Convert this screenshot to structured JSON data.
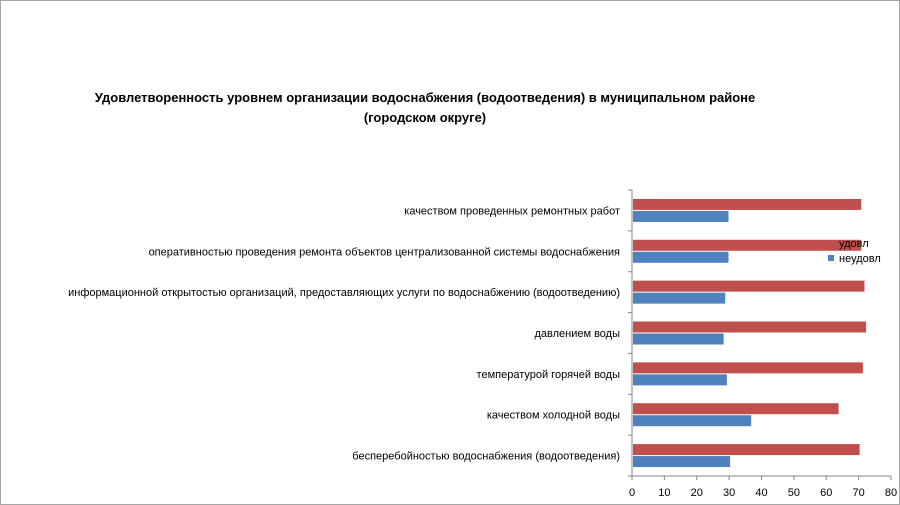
{
  "chart_data": {
    "type": "bar",
    "orientation": "horizontal",
    "title": "Удовлетворенность уровнем организации водоснабжения (водоотведения) в муниципальном районе (городском округе)",
    "categories": [
      "бесперебойностью водоснабжения (водоотведения)",
      "качеством холодной воды",
      "температурой горячей воды",
      "давлением воды",
      "информационной открытостью организаций, предоставляющих услуги по водоснабжению (водоотведению)",
      "оперативностью проведения ремонта объектов централизованной системы водоснабжения",
      "качеством проведенных ремонтных работ"
    ],
    "series": [
      {
        "name": "удовл",
        "color": "#c0504d",
        "values": [
          70,
          63.5,
          71,
          72,
          71.5,
          70.5,
          70.5
        ]
      },
      {
        "name": "неудовл",
        "color": "#4f81bd",
        "values": [
          30,
          36.5,
          29,
          28,
          28.5,
          29.5,
          29.5
        ]
      }
    ],
    "xlim": [
      0,
      80
    ],
    "xticks": [
      0,
      10,
      20,
      30,
      40,
      50,
      60,
      70,
      80
    ],
    "xlabel": "",
    "ylabel": "",
    "grid": false,
    "legend_position": "right"
  }
}
